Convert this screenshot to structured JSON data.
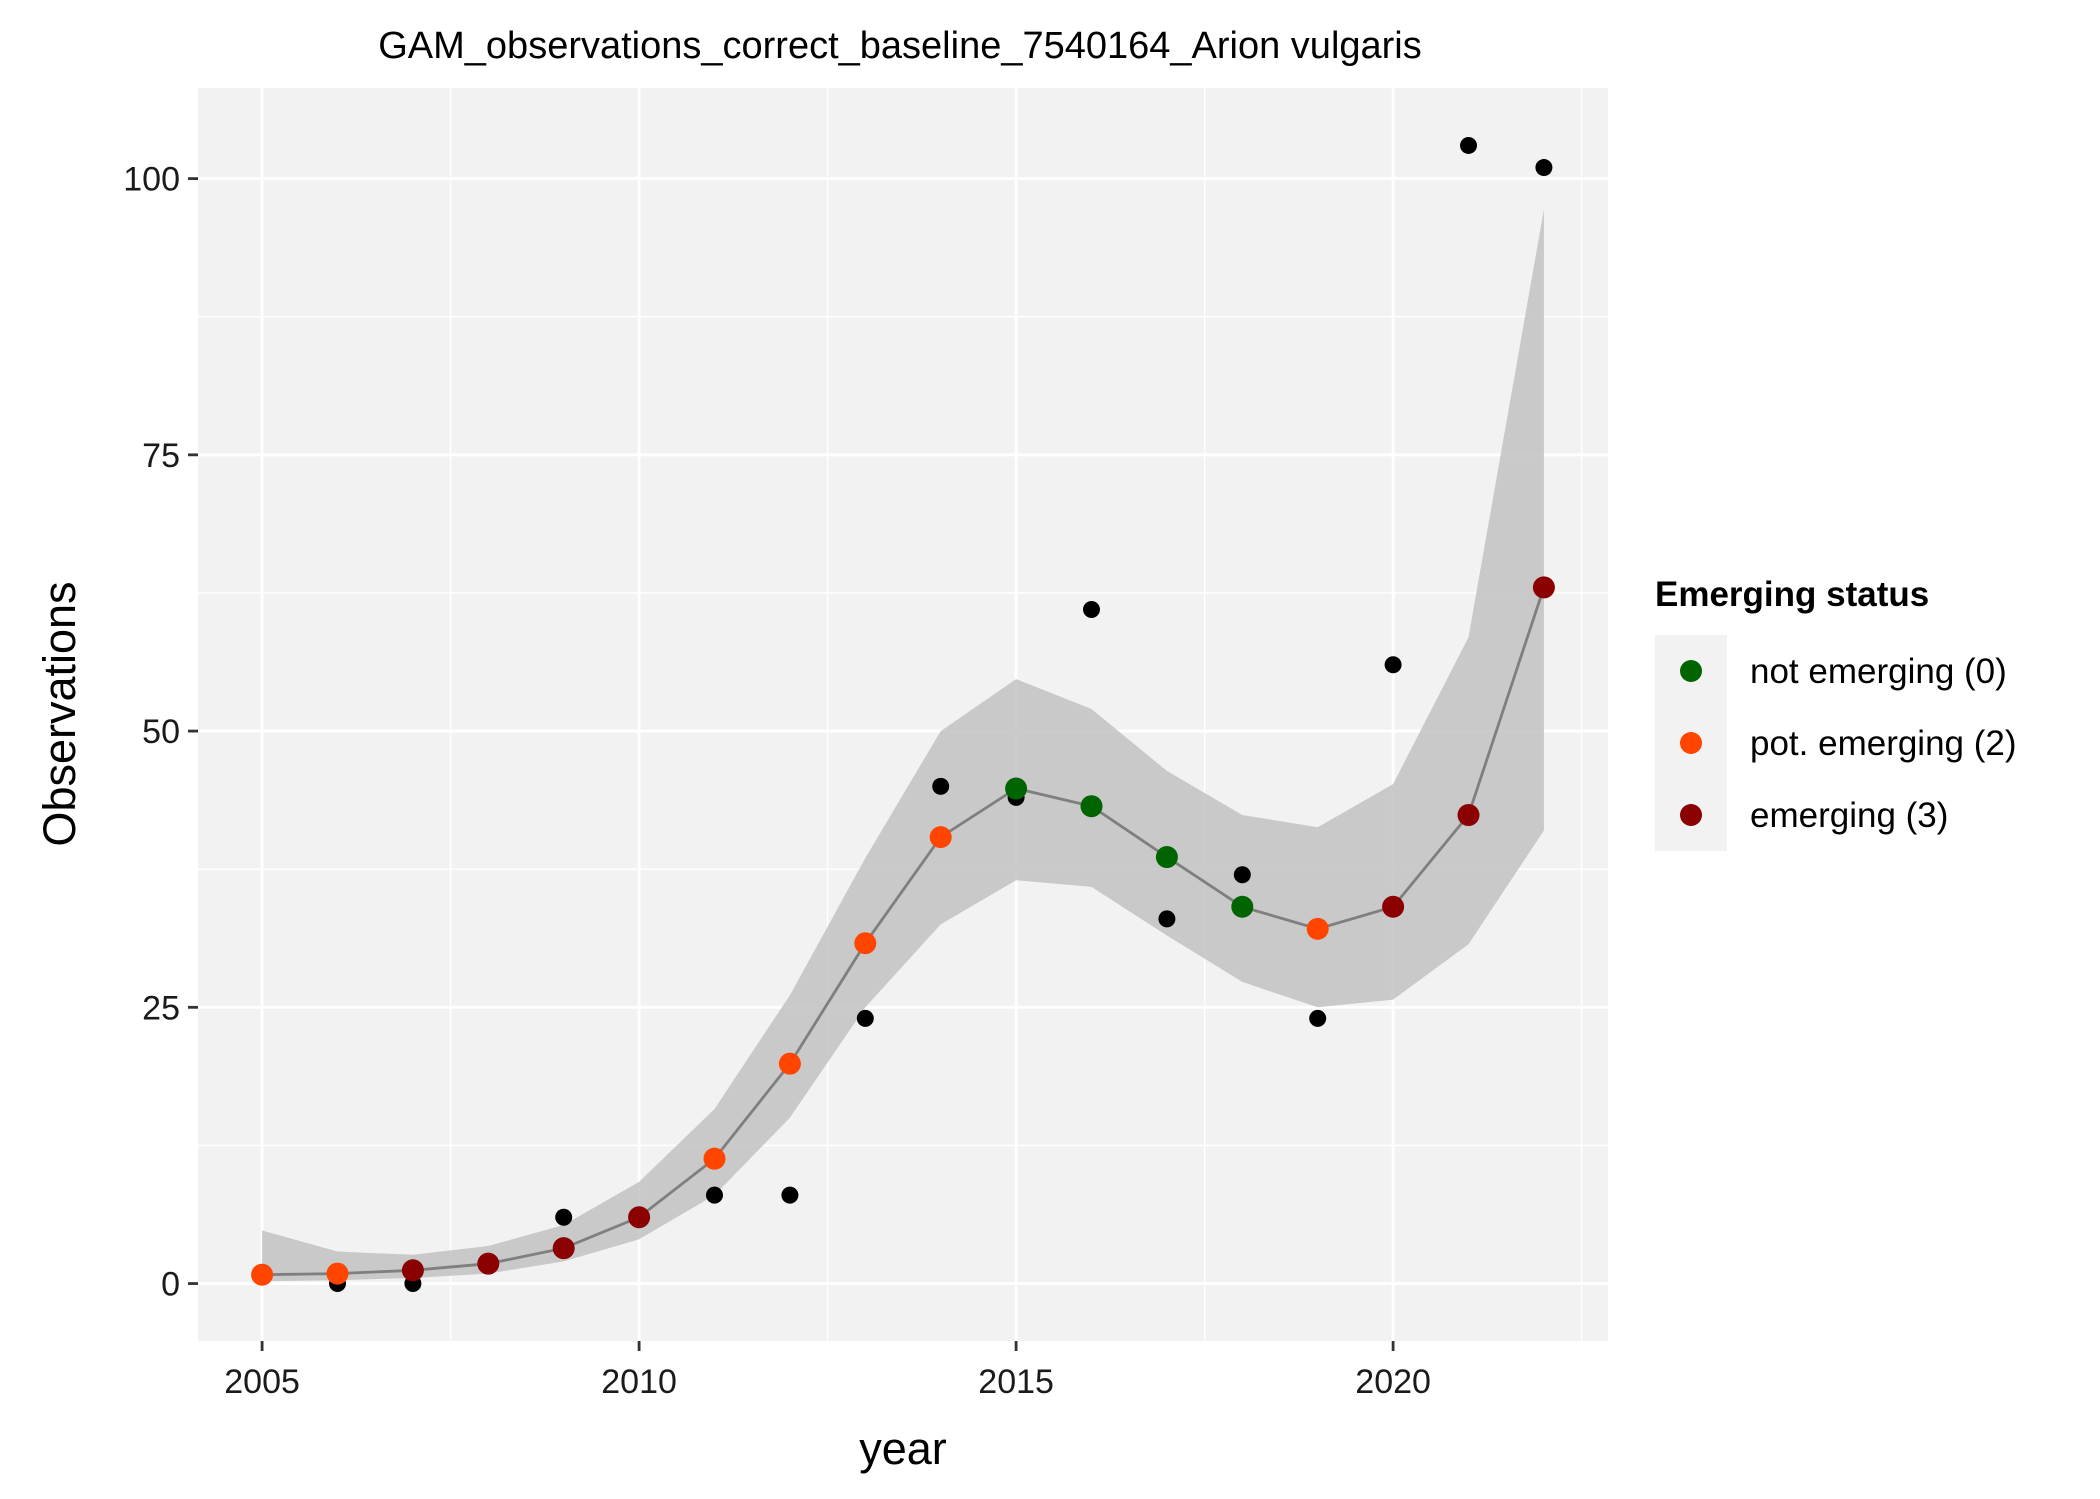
{
  "chart_data": {
    "type": "line",
    "title": "GAM_observations_correct_baseline_7540164_Arion vulgaris",
    "xlabel": "year",
    "ylabel": "Observations",
    "xlim": [
      2004.15,
      2022.85
    ],
    "ylim": [
      -5.2,
      108.2
    ],
    "x_ticks": [
      2005,
      2010,
      2015,
      2020
    ],
    "x_minor": [
      2007.5,
      2012.5,
      2017.5,
      2022.5
    ],
    "y_ticks": [
      0,
      25,
      50,
      75,
      100
    ],
    "y_minor": [
      12.5,
      37.5,
      62.5,
      87.5
    ],
    "x_tick_labels": [
      "2005",
      "2010",
      "2015",
      "2020"
    ],
    "y_tick_labels": [
      "0",
      "25",
      "50",
      "75",
      "100"
    ],
    "grid": true,
    "colors": {
      "panel": "#f2f2f2",
      "grid": "#ffffff",
      "ribbon": "#bebebe",
      "fit_line": "#7f7f7f",
      "observed": "#000000"
    },
    "observed": {
      "x": [
        2005,
        2006,
        2007,
        2008,
        2009,
        2010,
        2011,
        2012,
        2013,
        2014,
        2015,
        2016,
        2017,
        2018,
        2019,
        2020,
        2021,
        2022
      ],
      "y": [
        1,
        0,
        0,
        2,
        6,
        6,
        8,
        8,
        24,
        45,
        44,
        61,
        33,
        37,
        24,
        56,
        103,
        101
      ]
    },
    "fit": {
      "x": [
        2005,
        2006,
        2007,
        2008,
        2009,
        2010,
        2011,
        2012,
        2013,
        2014,
        2015,
        2016,
        2017,
        2018,
        2019,
        2020,
        2021,
        2022
      ],
      "y": [
        0.8,
        0.9,
        1.2,
        1.8,
        3.2,
        6.0,
        11.3,
        19.9,
        30.8,
        40.4,
        44.8,
        43.2,
        38.6,
        34.1,
        32.1,
        34.1,
        42.4,
        63.0
      ],
      "lower": [
        0.2,
        0.3,
        0.5,
        0.9,
        2.0,
        4.0,
        8.0,
        15.0,
        25.0,
        32.5,
        36.5,
        35.9,
        31.5,
        27.3,
        25.0,
        25.7,
        30.7,
        41.0
      ],
      "upper": [
        4.8,
        2.9,
        2.6,
        3.4,
        5.3,
        9.2,
        15.8,
        26.1,
        38.5,
        50.0,
        54.7,
        52.0,
        46.4,
        42.4,
        41.3,
        45.2,
        58.5,
        97.2
      ],
      "status": [
        2,
        2,
        3,
        3,
        3,
        3,
        2,
        2,
        2,
        2,
        0,
        0,
        0,
        0,
        2,
        3,
        3,
        3
      ]
    },
    "legend": {
      "title": "Emerging status",
      "placement": "right",
      "entries": [
        {
          "code": 0,
          "label": "not emerging (0)",
          "color": "#006400"
        },
        {
          "code": 2,
          "label": "pot. emerging (2)",
          "color": "#ff4500"
        },
        {
          "code": 3,
          "label": "emerging (3)",
          "color": "#8b0000"
        }
      ]
    }
  }
}
